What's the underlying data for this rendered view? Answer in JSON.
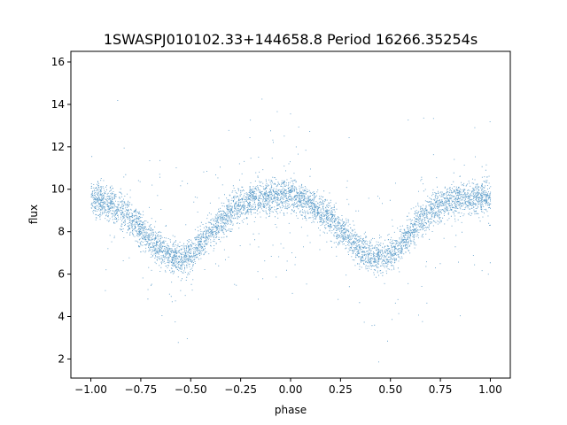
{
  "colors": {
    "points": "#1f77b4"
  },
  "chart_data": {
    "type": "scatter",
    "title": "1SWASPJ010102.33+144658.8 Period 16266.35254s",
    "xlabel": "phase",
    "ylabel": "flux",
    "xlim": [
      -1.1,
      1.1
    ],
    "ylim": [
      1.1,
      16.5
    ],
    "xticks": [
      -1.0,
      -0.75,
      -0.5,
      -0.25,
      0.0,
      0.25,
      0.5,
      0.75,
      1.0
    ],
    "xtick_labels": [
      "−1.00",
      "−0.75",
      "−0.50",
      "−0.25",
      "0.00",
      "0.25",
      "0.50",
      "0.75",
      "1.00"
    ],
    "yticks": [
      2,
      4,
      6,
      8,
      10,
      12,
      14,
      16
    ],
    "ytick_labels": [
      "2",
      "4",
      "6",
      "8",
      "10",
      "12",
      "14",
      "16"
    ],
    "grid": false,
    "legend": "none",
    "series": [
      {
        "phase": [
          -1.0,
          -0.9,
          -0.8,
          -0.7,
          -0.6,
          -0.55,
          -0.5,
          -0.4,
          -0.3,
          -0.2,
          -0.1,
          0.0,
          0.1,
          0.2,
          0.3,
          0.4,
          0.45,
          0.5,
          0.6,
          0.7,
          0.8,
          0.9,
          1.0
        ],
        "flux_center": [
          9.6,
          9.3,
          8.6,
          7.6,
          6.9,
          6.8,
          7.0,
          8.0,
          9.0,
          9.5,
          9.7,
          9.7,
          9.3,
          8.6,
          7.6,
          6.9,
          6.8,
          7.0,
          8.0,
          9.0,
          9.5,
          9.6,
          9.7
        ],
        "band_halfwidth": 1.0
      }
    ]
  }
}
